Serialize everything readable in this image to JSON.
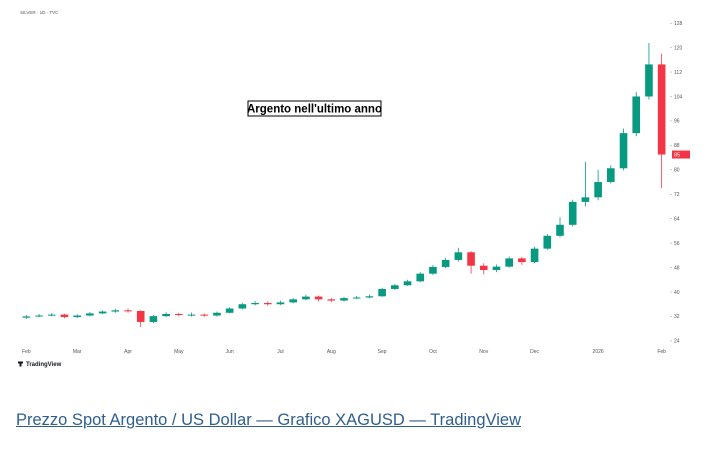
{
  "chart_data": {
    "type": "candlestick",
    "header": "SILVER · 1D · TVC",
    "annotation": "Argento nell'ultimo anno",
    "brand": "TradingView",
    "categories": [
      "Feb",
      null,
      null,
      null,
      "Mar",
      null,
      null,
      null,
      "Apr",
      null,
      null,
      null,
      "May",
      null,
      null,
      null,
      "Jun",
      null,
      null,
      null,
      "Jul",
      null,
      null,
      null,
      "Aug",
      null,
      null,
      null,
      "Sep",
      null,
      null,
      null,
      "Oct",
      null,
      null,
      null,
      "Nov",
      null,
      null,
      null,
      "Dec",
      null,
      null,
      null,
      null,
      "2026",
      null,
      null,
      null,
      null,
      "Feb"
    ],
    "series": [
      {
        "up_color": "#089981",
        "down_color": "#f23645",
        "open": [
          31.6,
          32.0,
          32.3,
          32.6,
          31.8,
          32.3,
          33.0,
          33.6,
          34.0,
          33.8,
          30.2,
          32.1,
          32.8,
          32.5,
          32.6,
          32.3,
          33.2,
          34.6,
          36.0,
          36.4,
          36.0,
          36.6,
          37.6,
          38.5,
          37.6,
          37.2,
          38.0,
          38.2,
          38.6,
          41.0,
          42.2,
          43.5,
          46.0,
          48.2,
          50.5,
          53.0,
          48.6,
          47.2,
          48.3,
          51.0,
          49.8,
          54.2,
          58.4,
          62.0,
          69.5,
          71.0,
          76.0,
          80.5,
          92.0,
          104.0,
          114.5
        ],
        "high": [
          32.5,
          32.8,
          33.1,
          32.9,
          32.7,
          33.4,
          34.0,
          34.5,
          34.6,
          34.0,
          32.5,
          33.4,
          33.2,
          33.3,
          33.0,
          33.6,
          35.0,
          36.4,
          37.0,
          36.9,
          37.2,
          38.0,
          39.1,
          38.8,
          38.0,
          38.4,
          38.7,
          39.2,
          41.4,
          42.6,
          44.0,
          46.5,
          48.8,
          51.2,
          54.5,
          53.4,
          49.4,
          49.0,
          51.6,
          51.5,
          54.8,
          59.0,
          64.5,
          70.2,
          82.5,
          80.0,
          81.5,
          93.5,
          105.5,
          121.5,
          118.0
        ],
        "low": [
          31.2,
          31.7,
          32.0,
          31.4,
          31.5,
          32.0,
          32.7,
          33.2,
          33.2,
          28.5,
          29.8,
          31.8,
          32.0,
          32.0,
          31.9,
          32.0,
          33.0,
          34.3,
          35.6,
          35.5,
          35.7,
          36.3,
          37.3,
          36.9,
          36.6,
          36.9,
          37.6,
          37.9,
          38.4,
          40.7,
          42.0,
          43.2,
          45.6,
          47.8,
          50.0,
          46.0,
          45.8,
          46.5,
          48.0,
          48.9,
          49.5,
          53.8,
          57.9,
          61.5,
          68.0,
          70.0,
          75.5,
          79.8,
          91.0,
          103.0,
          74.0
        ],
        "close": [
          32.0,
          32.3,
          32.6,
          31.8,
          32.3,
          33.0,
          33.6,
          34.0,
          33.8,
          30.2,
          32.1,
          32.8,
          32.5,
          32.6,
          32.3,
          33.2,
          34.6,
          36.0,
          36.4,
          36.0,
          36.6,
          37.6,
          38.5,
          37.6,
          37.2,
          38.0,
          38.2,
          38.6,
          41.0,
          42.2,
          43.5,
          46.0,
          48.2,
          50.5,
          53.0,
          48.6,
          47.2,
          48.3,
          51.0,
          49.8,
          54.2,
          58.4,
          62.0,
          69.5,
          71.0,
          76.0,
          80.5,
          92.0,
          104.0,
          114.5,
          85.0
        ]
      }
    ],
    "ylim": [
      22,
      131
    ],
    "yticks": [
      24,
      32,
      40,
      48,
      56,
      64,
      72,
      80,
      88,
      96,
      104,
      112,
      120,
      128
    ]
  },
  "link": "Prezzo Spot Argento / US Dollar — Grafico XAGUSD — TradingView"
}
